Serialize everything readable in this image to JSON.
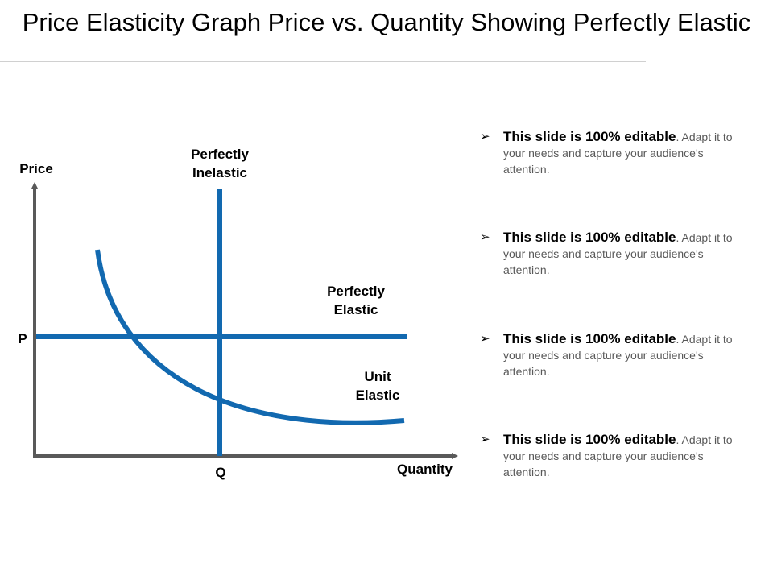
{
  "slide": {
    "title": "Price Elasticity Graph Price vs. Quantity Showing Perfectly Elastic"
  },
  "graph": {
    "y_axis_label": "Price",
    "x_axis_label": "Quantity",
    "p_label": "P",
    "q_label": "Q",
    "inelastic_label_line1": "Perfectly",
    "inelastic_label_line2": "Inelastic",
    "elastic_label_line1": "Perfectly",
    "elastic_label_line2": "Elastic",
    "unit_label_line1": "Unit",
    "unit_label_line2": "Elastic",
    "curve_color": "#1269b0",
    "axis_color": "#595959"
  },
  "bullets": {
    "items": [
      {
        "bold": "This slide is 100% editable",
        "rest": ". Adapt it to your needs and capture your audience's attention."
      },
      {
        "bold": "This slide is 100% editable",
        "rest": ". Adapt it to your needs and capture your audience's attention."
      },
      {
        "bold": "This slide is 100% editable",
        "rest": ". Adapt it to your needs and capture your audience's attention."
      },
      {
        "bold": "This slide is 100% editable",
        "rest": ". Adapt it to your needs and capture your audience's attention."
      }
    ],
    "marker": "➢"
  }
}
